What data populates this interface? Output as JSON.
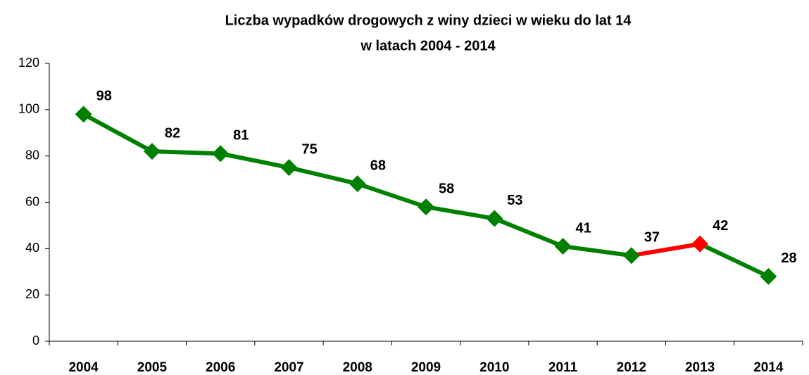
{
  "chart_data": {
    "type": "line",
    "title": [
      "Liczba wypadków drogowych z winy dzieci w wieku do lat 14",
      "w latach 2004 - 2014"
    ],
    "categories": [
      "2004",
      "2005",
      "2006",
      "2007",
      "2008",
      "2009",
      "2010",
      "2011",
      "2012",
      "2013",
      "2014"
    ],
    "series": [
      {
        "color": "#008000",
        "values": [
          98,
          82,
          81,
          75,
          68,
          58,
          53,
          41,
          37,
          42,
          28
        ],
        "point_colors": [
          "#008000",
          "#008000",
          "#008000",
          "#008000",
          "#008000",
          "#008000",
          "#008000",
          "#008000",
          "#008000",
          "#ff0000",
          "#008000"
        ]
      }
    ],
    "ylim": [
      0,
      120
    ],
    "yticks": [
      0,
      20,
      40,
      60,
      80,
      100,
      120
    ],
    "grid": false
  }
}
